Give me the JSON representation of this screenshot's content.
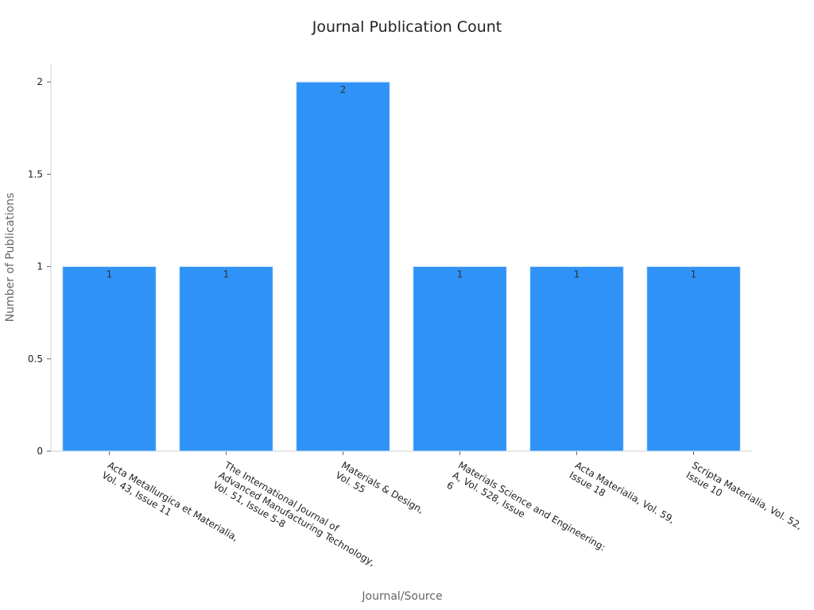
{
  "chart_data": {
    "type": "bar",
    "title": "Journal Publication Count",
    "x_label": "Journal/Source",
    "y_label": "Number of Publications",
    "categories": [
      [
        "Acta Metallurgica et Materialia,",
        "Vol. 43, Issue 11"
      ],
      [
        "The International Journal of",
        "Advanced Manufacturing Technology,",
        "Vol. 51, Issue 5-8"
      ],
      [
        "Materials & Design,",
        "Vol. 55"
      ],
      [
        "Materials Science and Engineering:",
        "A, Vol. 528, Issue",
        "6"
      ],
      [
        "Acta Materialia, Vol. 59,",
        "Issue 18"
      ],
      [
        "Scripta Materialia, Vol. 52,",
        "Issue 10"
      ]
    ],
    "values": [
      1,
      1,
      2,
      1,
      1,
      1
    ],
    "color": "#2e92f6",
    "ylim": [
      0,
      2.1
    ],
    "yticks": [
      0,
      0.5,
      1,
      1.5,
      2
    ],
    "grid": false
  }
}
